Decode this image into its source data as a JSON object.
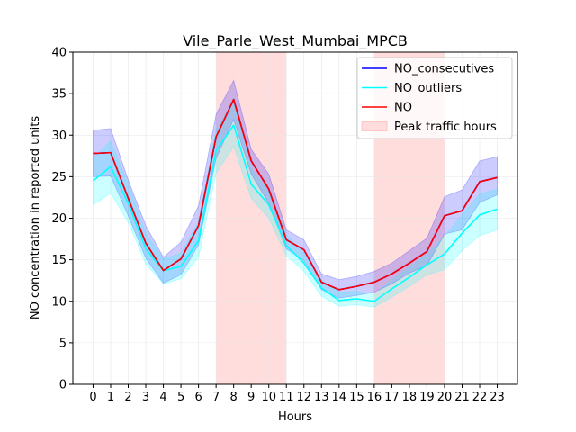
{
  "chart_data": {
    "type": "line",
    "title": "Vile_Parle_West_Mumbai_MPCB",
    "xlabel": "Hours",
    "ylabel": "NO concentration in reported units",
    "x": [
      0,
      1,
      2,
      3,
      4,
      5,
      6,
      7,
      8,
      9,
      10,
      11,
      12,
      13,
      14,
      15,
      16,
      17,
      18,
      19,
      20,
      21,
      22,
      23
    ],
    "xticks": [
      "0",
      "1",
      "2",
      "3",
      "4",
      "5",
      "6",
      "7",
      "8",
      "9",
      "10",
      "11",
      "12",
      "13",
      "14",
      "15",
      "16",
      "17",
      "18",
      "19",
      "20",
      "21",
      "22",
      "23"
    ],
    "ylim": [
      0,
      40
    ],
    "yticks": [
      "0",
      "5",
      "10",
      "15",
      "20",
      "25",
      "30",
      "35",
      "40"
    ],
    "grid": true,
    "legend_position": "top-right",
    "shaded_regions": [
      {
        "name": "Peak traffic hours",
        "x_start": 7,
        "x_end": 11,
        "color": "#ffdddd"
      },
      {
        "name": "Peak traffic hours",
        "x_start": 16,
        "x_end": 20,
        "color": "#ffdddd"
      }
    ],
    "series": [
      {
        "name": "NO_consecutives",
        "color": "#0000ff",
        "values": [
          27.8,
          27.9,
          22.4,
          17.0,
          13.7,
          15.1,
          19.1,
          29.8,
          34.3,
          26.9,
          23.5,
          17.4,
          16.2,
          12.3,
          11.4,
          11.8,
          12.3,
          13.3,
          14.6,
          16.0,
          20.3,
          20.9,
          24.4,
          24.9
        ],
        "band_low": [
          25.0,
          25.1,
          20.3,
          15.2,
          12.2,
          13.2,
          16.8,
          27.2,
          31.9,
          25.3,
          21.8,
          16.3,
          14.9,
          11.4,
          10.4,
          10.7,
          11.1,
          12.1,
          13.4,
          14.3,
          18.1,
          18.6,
          21.9,
          22.8
        ],
        "band_high": [
          30.6,
          30.8,
          24.6,
          19.1,
          15.3,
          17.1,
          21.5,
          32.5,
          36.6,
          28.3,
          25.3,
          18.6,
          17.4,
          13.3,
          12.6,
          13.0,
          13.6,
          14.6,
          16.1,
          17.6,
          22.6,
          23.4,
          26.9,
          27.4
        ]
      },
      {
        "name": "NO_outliers",
        "color": "#00ffff",
        "values": [
          24.5,
          26.2,
          21.8,
          16.3,
          13.7,
          14.2,
          17.3,
          28.1,
          31.2,
          24.1,
          21.6,
          16.7,
          14.6,
          11.6,
          10.1,
          10.3,
          10.0,
          11.5,
          12.9,
          14.4,
          15.7,
          18.2,
          20.4,
          21.1
        ],
        "band_low": [
          21.6,
          23.0,
          19.5,
          14.5,
          12.1,
          12.7,
          15.3,
          25.4,
          28.6,
          22.4,
          20.0,
          15.5,
          13.6,
          10.6,
          9.4,
          9.6,
          9.3,
          10.5,
          11.8,
          13.2,
          13.8,
          16.1,
          17.9,
          18.6
        ],
        "band_high": [
          27.2,
          29.3,
          24.1,
          18.2,
          15.1,
          15.8,
          19.6,
          30.7,
          33.9,
          26.0,
          23.2,
          18.0,
          15.8,
          12.6,
          11.1,
          11.2,
          10.8,
          12.6,
          14.1,
          15.7,
          17.8,
          20.4,
          22.9,
          23.5
        ]
      },
      {
        "name": "NO",
        "color": "#ff0000",
        "values": [
          27.8,
          27.9,
          22.4,
          17.0,
          13.7,
          15.1,
          19.1,
          29.8,
          34.3,
          26.9,
          23.5,
          17.4,
          16.2,
          12.3,
          11.4,
          11.8,
          12.3,
          13.3,
          14.6,
          16.0,
          20.3,
          20.9,
          24.4,
          24.9
        ]
      }
    ],
    "legend": [
      {
        "label": "NO_consecutives",
        "kind": "line",
        "color": "#0000ff"
      },
      {
        "label": "NO_outliers",
        "kind": "line",
        "color": "#00ffff"
      },
      {
        "label": "NO",
        "kind": "line",
        "color": "#ff0000"
      },
      {
        "label": "Peak traffic hours",
        "kind": "patch",
        "color": "#ffdddd"
      }
    ]
  }
}
